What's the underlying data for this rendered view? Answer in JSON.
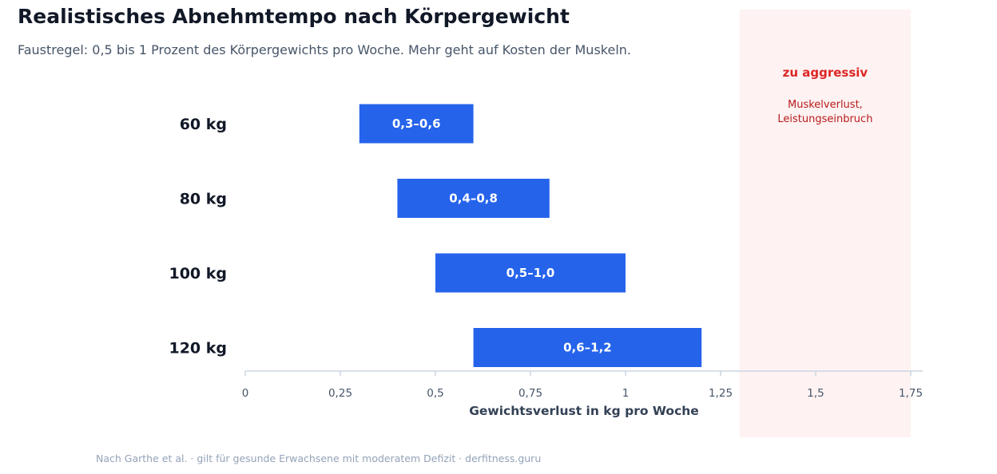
{
  "header": {
    "title": "Realistisches Abnehmtempo nach Körpergewicht",
    "subtitle": "Faustregel: 0,5 bis 1 Prozent des Körpergewichts pro Woche. Mehr geht auf Kosten der Muskeln."
  },
  "footer": {
    "source": "Nach Garthe et al. · gilt für gesunde Erwachsene mit moderatem Defizit · derfitness.guru"
  },
  "chart_data": {
    "type": "bar",
    "orientation": "horizontal-range",
    "categories": [
      "60 kg",
      "80 kg",
      "100 kg",
      "120 kg"
    ],
    "ranges": [
      {
        "low": 0.3,
        "high": 0.6,
        "label": "0,3–0,6"
      },
      {
        "low": 0.4,
        "high": 0.8,
        "label": "0,4–0,8"
      },
      {
        "low": 0.5,
        "high": 1.0,
        "label": "0,5–1,0"
      },
      {
        "low": 0.6,
        "high": 1.2,
        "label": "0,6–1,2"
      }
    ],
    "xlabel": "Gewichtsverlust in kg pro Woche",
    "xlim": [
      0,
      1.78
    ],
    "xticks": [
      0,
      0.25,
      0.5,
      0.75,
      1,
      1.25,
      1.5,
      1.75
    ],
    "xtick_labels": [
      "0",
      "0,25",
      "0,5",
      "0,75",
      "1",
      "1,25",
      "1,5",
      "1,75"
    ],
    "grid": false,
    "zone": {
      "from": 1.3,
      "to": 1.75,
      "title": "zu aggressiv",
      "note_lines": [
        "Muskelverlust,",
        "Leistungseinbruch"
      ]
    },
    "colors": {
      "bar": "#2563eb",
      "bar_label": "#ffffff",
      "zone_fill": "#fef2f2",
      "zone_title": "#dc2626",
      "zone_text": "#b91c1c",
      "axis": "#cbd5e1",
      "tick_text": "#475569",
      "category_text": "#111827"
    }
  }
}
